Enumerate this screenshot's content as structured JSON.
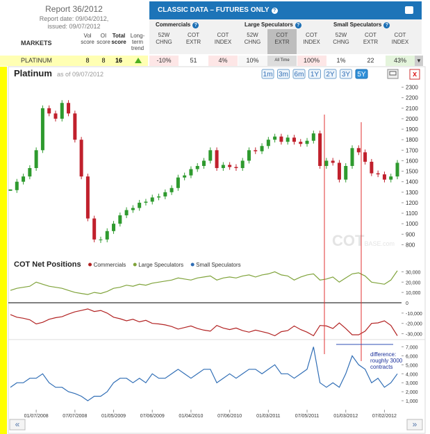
{
  "report": {
    "title": "Report 36/2012",
    "date": "Report date: 09/04/2012,",
    "issued": "issued: 09/07/2012"
  },
  "table": {
    "markets_header": "MARKETS",
    "columns": [
      "Vol score",
      "OI score",
      "Total score",
      "Long-term trend"
    ],
    "banner": "CLASSIC DATA – FUTURES ONLY",
    "groups": [
      "Commercials",
      "Large Speculators",
      "Small Speculators"
    ],
    "subcolumns": [
      "52W CHNG",
      "COT EXTR",
      "COT INDEX"
    ],
    "row": {
      "market": "PLATINUM",
      "cells": [
        "8",
        "8",
        "16"
      ],
      "data": [
        "-10%",
        "51",
        "4%",
        "10%",
        "All Time",
        "100%",
        "1%",
        "22",
        "43%"
      ]
    }
  },
  "toolbar": {
    "title": "Platinum",
    "as_of": "as of 09/07/2012",
    "ranges": [
      "1m",
      "3m",
      "6m",
      "1Y",
      "2Y",
      "3Y",
      "5Y"
    ],
    "active": "5Y",
    "close": "x"
  },
  "nav": [
    "«",
    "»"
  ],
  "chart_data": [
    {
      "type": "candlestick",
      "watermark": [
        "COT",
        "BASE.com"
      ],
      "up_color": "#2e9a2e",
      "down_color": "#c0202c",
      "values": [
        1320,
        1400,
        1450,
        1530,
        1700,
        2100,
        2050,
        2000,
        2150,
        2050,
        1800,
        1450,
        1050,
        850,
        850,
        930,
        1000,
        1080,
        1130,
        1150,
        1200,
        1210,
        1250,
        1260,
        1300,
        1340,
        1440,
        1460,
        1520,
        1550,
        1600,
        1700,
        1530,
        1560,
        1540,
        1530,
        1600,
        1700,
        1690,
        1740,
        1800,
        1830,
        1780,
        1820,
        1780,
        1760,
        1790,
        1860,
        1550,
        1600,
        1580,
        1420,
        1550,
        1720,
        1680,
        1590,
        1480,
        1470,
        1420,
        1450,
        1580
      ],
      "ylim": [
        750,
        2350
      ],
      "yticks": [
        800,
        900,
        1000,
        1100,
        1200,
        1300,
        1400,
        1500,
        1600,
        1700,
        1800,
        1900,
        2000,
        2100,
        2200,
        2300
      ]
    },
    {
      "type": "line",
      "title": "COT Net Positions",
      "categories": [
        null,
        null,
        null,
        null,
        "01/07/2008",
        null,
        null,
        null,
        null,
        null,
        "07/07/2008",
        null,
        null,
        null,
        null,
        null,
        "01/05/2009",
        null,
        null,
        null,
        null,
        null,
        "07/06/2009",
        null,
        null,
        null,
        null,
        null,
        "01/04/2010",
        null,
        null,
        null,
        null,
        null,
        "07/06/2010",
        null,
        null,
        null,
        null,
        null,
        "01/03/2011",
        null,
        null,
        null,
        null,
        null,
        "07/05/2011",
        null,
        null,
        null,
        null,
        null,
        "01/03/2012",
        null,
        null,
        null,
        null,
        null,
        "07/02/2012",
        null,
        null
      ],
      "series": [
        {
          "name": "Commercials",
          "color": "#b22222",
          "values": [
            -11500,
            -14000,
            -15000,
            -16500,
            -20500,
            -19000,
            -16000,
            -14500,
            -13500,
            -11000,
            -8800,
            -7500,
            -6000,
            -8500,
            -7500,
            -10000,
            -14000,
            -15500,
            -17500,
            -16000,
            -18500,
            -17000,
            -20000,
            -20500,
            -21500,
            -23000,
            -25500,
            -24000,
            -22500,
            -25000,
            -26500,
            -27500,
            -22000,
            -24500,
            -26000,
            -24500,
            -27000,
            -28500,
            -26500,
            -28000,
            -29500,
            -32000,
            -28000,
            -27000,
            -22500,
            -26000,
            -28500,
            -32000,
            -22000,
            -22500,
            -25000,
            -19500,
            -25000,
            -31000,
            -31000,
            -27500,
            -20000,
            -19500,
            -17500,
            -22000,
            -32000
          ]
        },
        {
          "name": "Large Speculators",
          "color": "#7fa33a",
          "values": [
            12000,
            14000,
            15000,
            16000,
            20000,
            18000,
            16000,
            15000,
            14000,
            12000,
            10000,
            9000,
            8000,
            10000,
            9000,
            11000,
            14000,
            15000,
            17000,
            16000,
            18000,
            17000,
            19000,
            20000,
            21000,
            22000,
            24000,
            23000,
            22000,
            24000,
            25000,
            26000,
            22000,
            24000,
            25000,
            24000,
            26000,
            27000,
            25000,
            27000,
            28000,
            30000,
            27000,
            26000,
            22000,
            25000,
            27000,
            28000,
            22000,
            23000,
            25000,
            20000,
            24000,
            28000,
            29000,
            26000,
            20000,
            19000,
            18000,
            22000,
            31000
          ]
        },
        {
          "name": "Small Speculators",
          "color": "#2f6db5",
          "axis": "y2",
          "values": [
            2500,
            3000,
            3000,
            3500,
            3500,
            4000,
            3000,
            2500,
            2500,
            2000,
            1800,
            1500,
            1000,
            1500,
            1500,
            2000,
            3000,
            3500,
            3500,
            3000,
            3500,
            3000,
            4000,
            3500,
            3500,
            4000,
            4500,
            4000,
            3500,
            4000,
            4500,
            4500,
            3000,
            3500,
            4000,
            3500,
            4000,
            4500,
            4500,
            4000,
            4500,
            5000,
            4000,
            4000,
            3500,
            4000,
            4500,
            7000,
            3000,
            2500,
            3000,
            2500,
            4000,
            6000,
            5000,
            4500,
            3000,
            3500,
            2500,
            3000,
            4000
          ]
        }
      ],
      "ylim": [
        -35000,
        35000
      ],
      "yticks": [
        {
          "value": 30000,
          "label": "30,000"
        },
        {
          "value": 20000,
          "label": "20,000"
        },
        {
          "value": 10000,
          "label": "10,000"
        },
        0,
        {
          "value": -10000,
          "label": "-10,000"
        },
        {
          "value": -20000,
          "label": "-20,000"
        },
        {
          "value": -30000,
          "label": "-30,000"
        }
      ],
      "y2lim": [
        0,
        7500
      ],
      "y2ticks": [
        {
          "value": 1000,
          "label": "1,000"
        },
        {
          "value": 2000,
          "label": "2,000"
        },
        {
          "value": 3000,
          "label": "3,000"
        },
        {
          "value": 4000,
          "label": "4,000"
        },
        {
          "value": 5000,
          "label": "5,000"
        },
        {
          "value": 6000,
          "label": "6,000"
        },
        {
          "value": 7000,
          "label": "7,000"
        }
      ],
      "annotation": [
        "difference:",
        "roughly 3000",
        "contracts"
      ]
    }
  ]
}
